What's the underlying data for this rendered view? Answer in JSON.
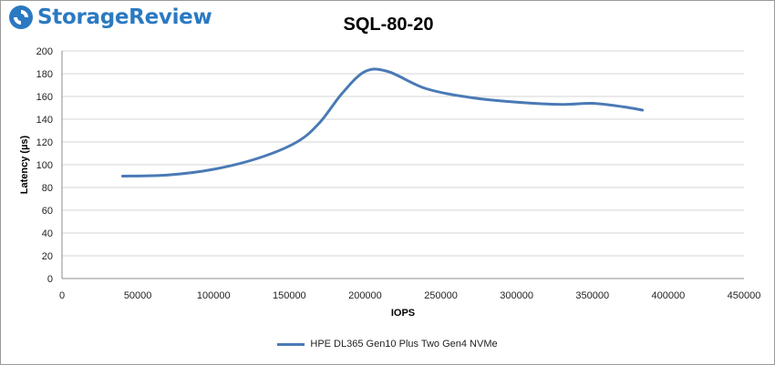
{
  "brand": {
    "name": "StorageReview"
  },
  "chart_data": {
    "type": "line",
    "title": "SQL-80-20",
    "xlabel": "IOPS",
    "ylabel": "Latency (µs)",
    "xlim": [
      0,
      450000
    ],
    "ylim": [
      0,
      200
    ],
    "xticks": [
      0,
      50000,
      100000,
      150000,
      200000,
      250000,
      300000,
      350000,
      400000,
      450000
    ],
    "yticks": [
      0,
      20,
      40,
      60,
      80,
      100,
      120,
      140,
      160,
      180,
      200
    ],
    "grid": "horizontal",
    "legend_position": "bottom",
    "series": [
      {
        "name": "HPE DL365 Gen10 Plus Two Gen4 NVMe",
        "color": "#4a7ab5",
        "x": [
          40000,
          70000,
          100000,
          130000,
          155000,
          170000,
          185000,
          200000,
          215000,
          240000,
          270000,
          300000,
          330000,
          350000,
          370000,
          383000
        ],
        "y": [
          90,
          91,
          96,
          106,
          120,
          137,
          163,
          182,
          182,
          167,
          159,
          155,
          153,
          154,
          151,
          148
        ]
      }
    ]
  }
}
